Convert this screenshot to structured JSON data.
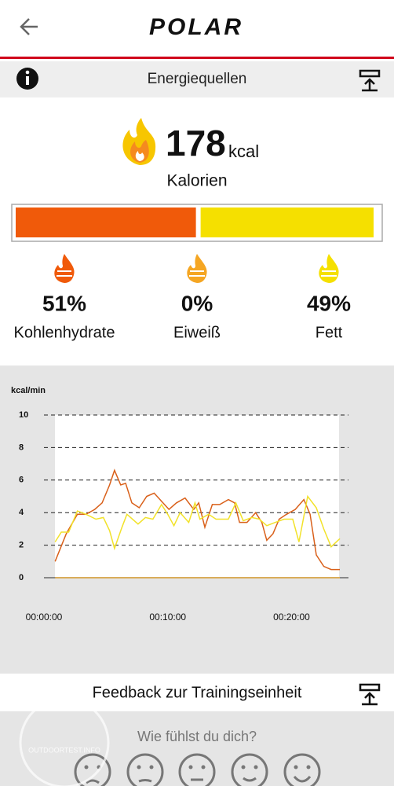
{
  "header": {
    "logo": "POLAR"
  },
  "section": {
    "title": "Energiequellen"
  },
  "calories": {
    "value": "178",
    "unit": "kcal",
    "label": "Kalorien"
  },
  "sources": [
    {
      "percent": 51,
      "label": "51%",
      "name": "Kohlenhydrate",
      "color": "#f05a0a"
    },
    {
      "percent": 0,
      "label": "0%",
      "name": "Eiweiß",
      "color": "#f5a623"
    },
    {
      "percent": 49,
      "label": "49%",
      "name": "Fett",
      "color": "#f5e000"
    }
  ],
  "chart_data": {
    "type": "line",
    "ylabel": "kcal/min",
    "xlim": [
      0,
      24.6
    ],
    "ylim": [
      0,
      10
    ],
    "yticks": [
      0,
      2,
      4,
      6,
      8,
      10
    ],
    "xticks": [
      {
        "value": 0,
        "label": "00:00:00"
      },
      {
        "value": 10,
        "label": "00:10:00"
      },
      {
        "value": 20,
        "label": "00:20:00"
      }
    ],
    "grid": true,
    "series": [
      {
        "color": "#f5b94a",
        "x": [
          0.9,
          23.9
        ],
        "values": [
          0,
          0
        ]
      },
      {
        "color": "#d9601a",
        "x": [
          0.9,
          1.8,
          2.7,
          3.4,
          4.1,
          4.7,
          5.3,
          5.7,
          6.2,
          6.6,
          7.1,
          7.7,
          8.3,
          8.9,
          9.5,
          10.1,
          10.7,
          11.4,
          12.1,
          12.5,
          13.0,
          13.6,
          14.2,
          14.9,
          15.4,
          15.8,
          16.4,
          17.1,
          17.6,
          18.0,
          18.5,
          19.0,
          19.6,
          20.3,
          21.0,
          21.5,
          22.0,
          22.6,
          23.2,
          23.9
        ],
        "values": [
          1.0,
          2.7,
          3.9,
          3.9,
          4.2,
          4.6,
          5.7,
          6.6,
          5.7,
          5.8,
          4.6,
          4.3,
          5.0,
          5.2,
          4.7,
          4.2,
          4.6,
          4.9,
          4.2,
          4.6,
          3.1,
          4.5,
          4.5,
          4.8,
          4.6,
          3.4,
          3.4,
          4.0,
          3.4,
          2.3,
          2.7,
          3.6,
          3.9,
          4.2,
          4.8,
          3.9,
          1.4,
          0.7,
          0.5,
          0.5
        ]
      },
      {
        "color": "#f2e22a",
        "x": [
          0.9,
          1.4,
          2.0,
          2.7,
          3.4,
          4.2,
          4.8,
          5.3,
          5.7,
          6.3,
          6.7,
          7.6,
          8.2,
          8.8,
          9.5,
          10.0,
          10.5,
          11.0,
          11.7,
          12.2,
          12.6,
          13.3,
          13.9,
          14.9,
          15.5,
          16.1,
          16.8,
          17.4,
          18.0,
          18.7,
          19.4,
          20.1,
          20.6,
          21.3,
          22.0,
          22.6,
          23.2,
          23.9
        ],
        "values": [
          2.2,
          2.8,
          2.8,
          4.1,
          3.9,
          3.6,
          3.7,
          2.9,
          1.8,
          3.1,
          3.9,
          3.3,
          3.7,
          3.6,
          4.5,
          3.9,
          3.2,
          4.0,
          3.4,
          4.6,
          3.6,
          3.9,
          3.6,
          3.6,
          4.6,
          3.5,
          3.7,
          3.6,
          3.2,
          3.4,
          3.6,
          3.6,
          2.2,
          5.0,
          4.3,
          3.0,
          1.9,
          2.4
        ]
      }
    ]
  },
  "feedback": {
    "title": "Feedback zur Trainingseinheit",
    "question": "Wie fühlst du dich?"
  },
  "watermark": "OUTDOORTEST.INFO"
}
